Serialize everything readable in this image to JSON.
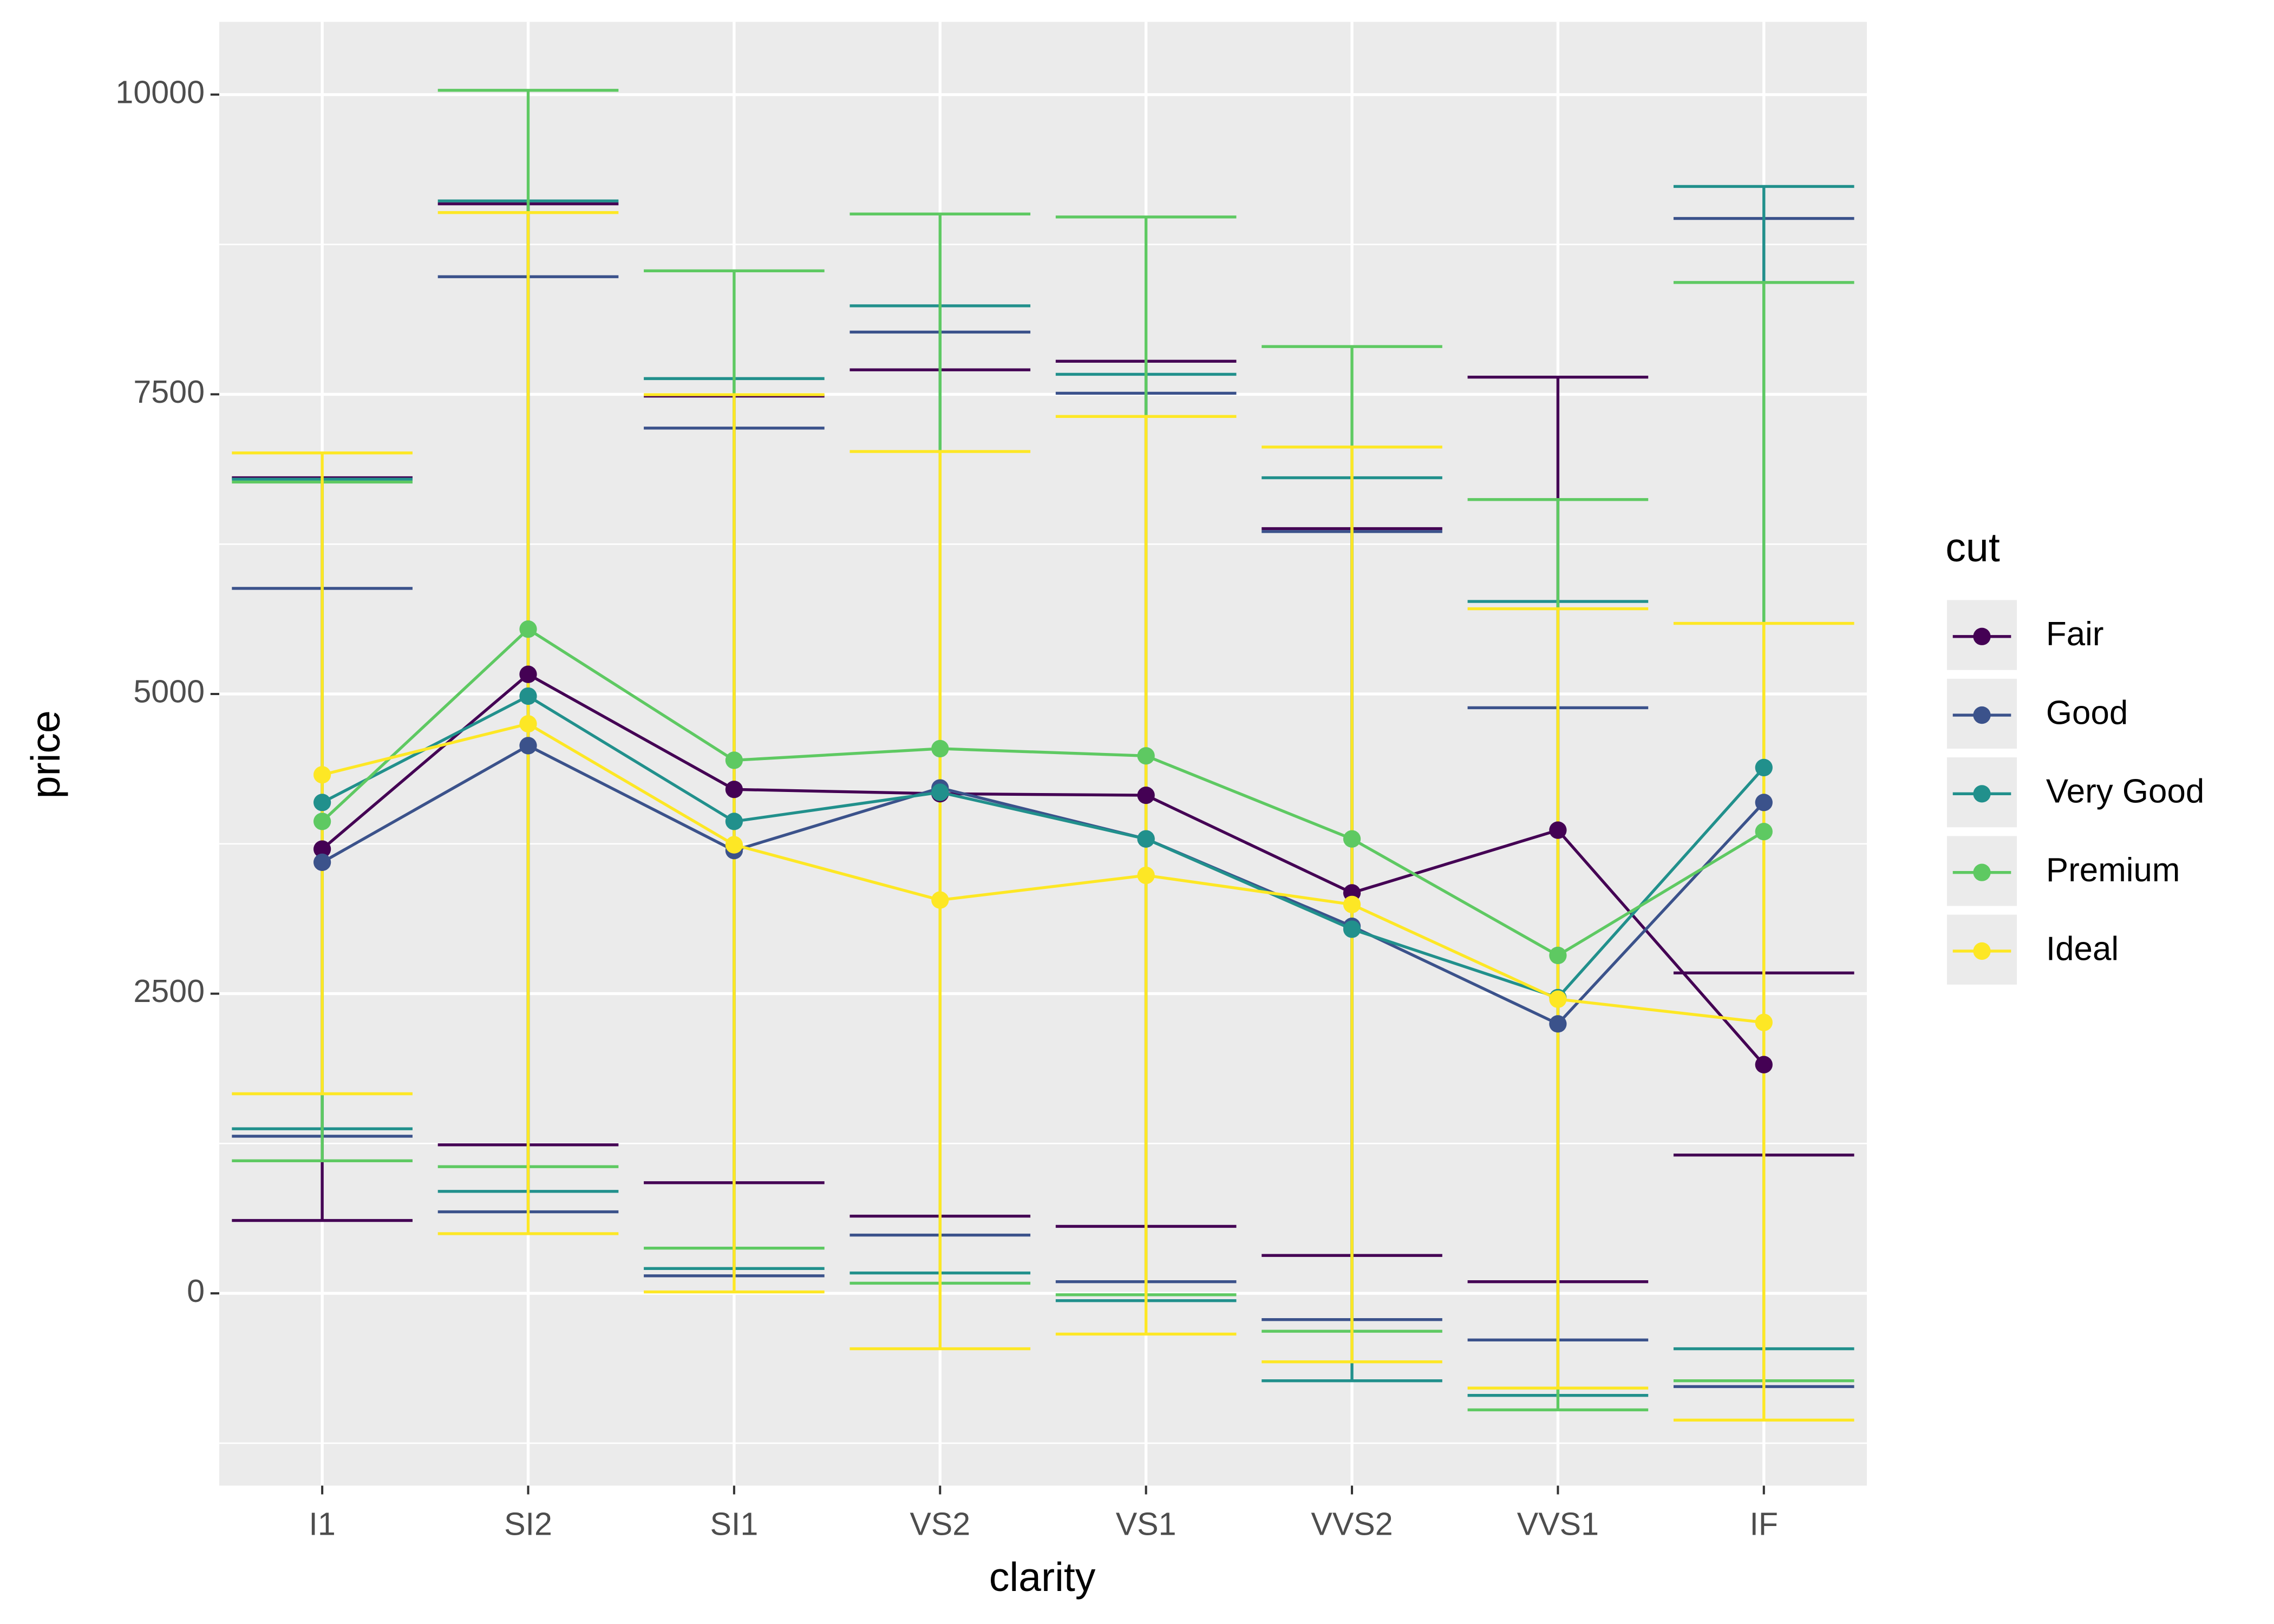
{
  "chart_data": {
    "type": "line-errorbar",
    "x_label": "clarity",
    "y_label": "price",
    "categories": [
      "I1",
      "SI2",
      "SI1",
      "VS2",
      "VS1",
      "VVS2",
      "VVS1",
      "IF"
    ],
    "ylim": [
      -1604,
      10607
    ],
    "yticks": [
      0,
      2500,
      5000,
      7500,
      10000
    ],
    "y_minor_ticks": [
      -1250,
      1250,
      3750,
      6250,
      8750
    ],
    "grid": true,
    "legend_title": "cut",
    "legend_position": "right",
    "series": [
      {
        "name": "Fair",
        "color": "#440154",
        "values": [
          3706,
          5164,
          4204,
          4168,
          4155,
          3341,
          3864,
          1908
        ],
        "lower": [
          608,
          1239,
          923,
          644,
          559,
          316,
          97,
          1154
        ],
        "upper": [
          6804,
          9089,
          7485,
          7704,
          7776,
          6379,
          7643,
          2673
        ]
      },
      {
        "name": "Good",
        "color": "#3b528b",
        "values": [
          3596,
          4569,
          3694,
          4216,
          3791,
          3062,
          2248,
          4095
        ],
        "lower": [
          1311,
          680,
          146,
          486,
          97,
          -219,
          -389,
          -778
        ],
        "upper": [
          5881,
          8481,
          7218,
          8019,
          7509,
          6355,
          4885,
          8967
        ]
      },
      {
        "name": "Very Good",
        "color": "#21908c",
        "values": [
          4095,
          4982,
          3937,
          4180,
          3791,
          3038,
          2467,
          4386
        ],
        "lower": [
          1373,
          851,
          207,
          170,
          -61,
          -729,
          -851,
          -462
        ],
        "upper": [
          6792,
          9113,
          7631,
          8238,
          7667,
          6804,
          5772,
          9234
        ]
      },
      {
        "name": "Premium",
        "color": "#5ec962",
        "values": [
          3937,
          5541,
          4447,
          4544,
          4484,
          3791,
          2819,
          3852
        ],
        "lower": [
          1106,
          1057,
          377,
          85,
          -12,
          -316,
          -972,
          -729
        ],
        "upper": [
          6768,
          10036,
          8530,
          9004,
          8979,
          7898,
          6622,
          8433
        ]
      },
      {
        "name": "Ideal",
        "color": "#fde725",
        "values": [
          4326,
          4751,
          3742,
          3281,
          3487,
          3244,
          2454,
          2260
        ],
        "lower": [
          1665,
          498,
          12,
          -462,
          -340,
          -571,
          -790,
          -1057
        ],
        "upper": [
          7011,
          9016,
          7497,
          7023,
          7315,
          7060,
          5711,
          5589
        ]
      }
    ]
  }
}
